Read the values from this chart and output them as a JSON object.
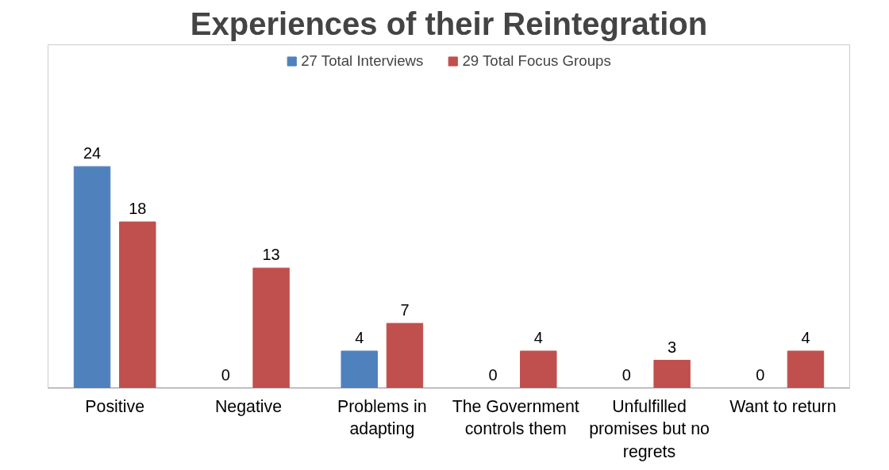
{
  "chart_data": {
    "type": "bar",
    "title": "Experiences of their Reintegration",
    "categories": [
      "Positive",
      "Negative",
      "Problems in adapting",
      "The Government controls them",
      "Unfulfilled promises but no regrets",
      "Want to return"
    ],
    "series": [
      {
        "name": "27 Total Interviews",
        "color": "#4f81bd",
        "values": [
          24,
          0,
          4,
          0,
          0,
          0
        ]
      },
      {
        "name": "29 Total Focus Groups",
        "color": "#c0504d",
        "values": [
          18,
          13,
          7,
          4,
          3,
          4
        ]
      }
    ],
    "data_labels": true,
    "legend": "top",
    "grid": false
  }
}
